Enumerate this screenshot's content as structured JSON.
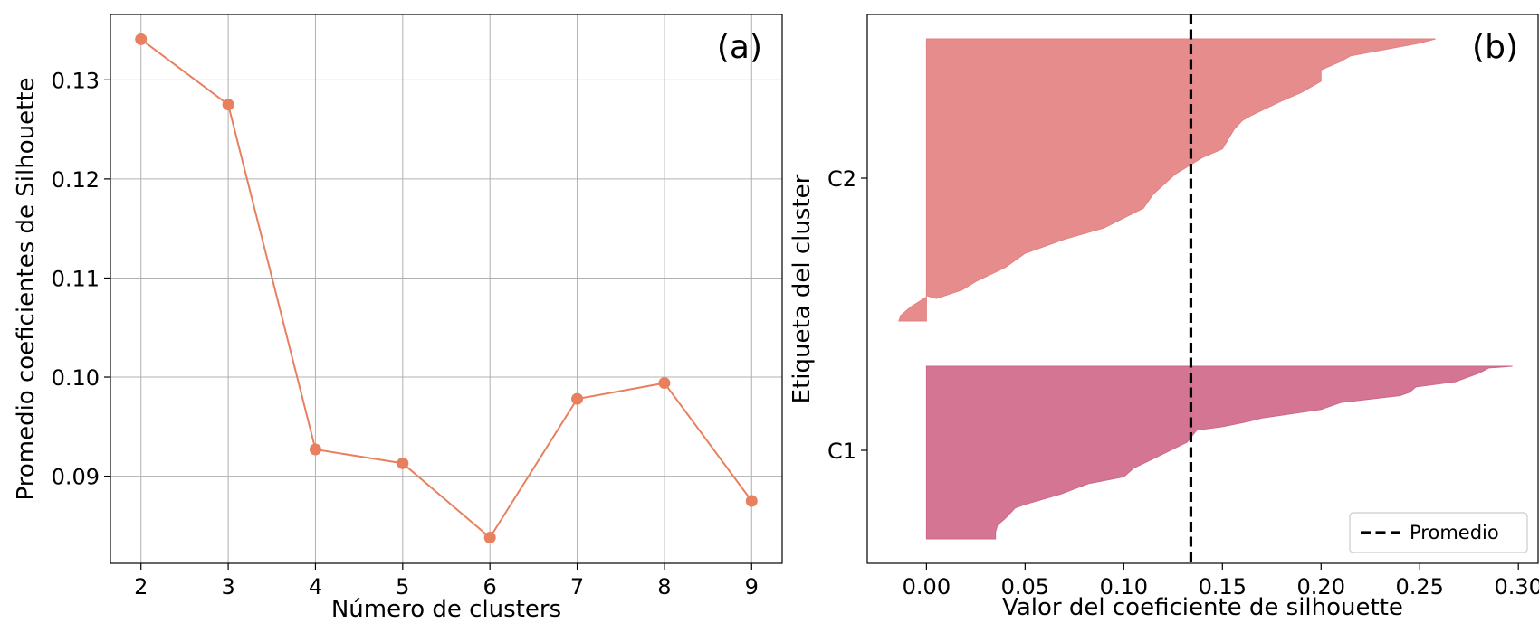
{
  "chart_data": [
    {
      "type": "line",
      "panel_label": "(a)",
      "xlabel": "Número de clusters",
      "ylabel": "Promedio coeficientes de Silhouette",
      "x": [
        2,
        3,
        4,
        5,
        6,
        7,
        8,
        9
      ],
      "series": [
        {
          "values": [
            0.1341,
            0.1275,
            0.0927,
            0.0913,
            0.0838,
            0.0978,
            0.0994,
            0.0875
          ],
          "color": "#e8805f",
          "marker": "circle"
        }
      ],
      "xticks": [
        "2",
        "3",
        "4",
        "5",
        "6",
        "7",
        "8",
        "9"
      ],
      "yticks": [
        "0.09",
        "0.10",
        "0.11",
        "0.12",
        "0.13"
      ],
      "xlim": [
        1.65,
        9.35
      ],
      "ylim": [
        0.0812,
        0.1366
      ],
      "grid": true
    },
    {
      "type": "area",
      "panel_label": "(b)",
      "xlabel": "Valor del coeficiente de silhouette",
      "ylabel": "Etiqueta del cluster",
      "xticks": [
        "0.00",
        "0.05",
        "0.10",
        "0.15",
        "0.20",
        "0.25",
        "0.30"
      ],
      "yticks": [
        "C1",
        "C2"
      ],
      "xlim": [
        -0.03,
        0.31
      ],
      "grid": false,
      "average_line": {
        "value": 0.134,
        "label": "Promedio",
        "color": "#000000",
        "style": "dashed"
      },
      "legend": {
        "position": "bottom-right",
        "entries": [
          "Promedio"
        ]
      },
      "clusters": [
        {
          "name": "C1",
          "color": "#cf6687",
          "silhouette_profile": [
            [
              0.297,
              0.0
            ],
            [
              0.285,
              0.01
            ],
            [
              0.28,
              0.04
            ],
            [
              0.268,
              0.09
            ],
            [
              0.248,
              0.12
            ],
            [
              0.245,
              0.15
            ],
            [
              0.24,
              0.17
            ],
            [
              0.21,
              0.21
            ],
            [
              0.2,
              0.25
            ],
            [
              0.17,
              0.3
            ],
            [
              0.163,
              0.32
            ],
            [
              0.15,
              0.35
            ],
            [
              0.137,
              0.37
            ],
            [
              0.132,
              0.44
            ],
            [
              0.116,
              0.53
            ],
            [
              0.105,
              0.59
            ],
            [
              0.1,
              0.64
            ],
            [
              0.082,
              0.68
            ],
            [
              0.068,
              0.74
            ],
            [
              0.05,
              0.8
            ],
            [
              0.045,
              0.82
            ],
            [
              0.04,
              0.88
            ],
            [
              0.036,
              0.92
            ],
            [
              0.035,
              0.96
            ],
            [
              0.035,
              1.0
            ]
          ]
        },
        {
          "name": "C2",
          "color": "#e38080",
          "silhouette_profile": [
            [
              0.258,
              0.0
            ],
            [
              0.25,
              0.015
            ],
            [
              0.215,
              0.06
            ],
            [
              0.21,
              0.08
            ],
            [
              0.2,
              0.11
            ],
            [
              0.2,
              0.15
            ],
            [
              0.19,
              0.19
            ],
            [
              0.18,
              0.22
            ],
            [
              0.165,
              0.27
            ],
            [
              0.16,
              0.29
            ],
            [
              0.156,
              0.32
            ],
            [
              0.15,
              0.39
            ],
            [
              0.14,
              0.42
            ],
            [
              0.126,
              0.48
            ],
            [
              0.115,
              0.55
            ],
            [
              0.11,
              0.6
            ],
            [
              0.09,
              0.67
            ],
            [
              0.07,
              0.71
            ],
            [
              0.05,
              0.76
            ],
            [
              0.04,
              0.81
            ],
            [
              0.025,
              0.86
            ],
            [
              0.018,
              0.89
            ],
            [
              0.005,
              0.92
            ],
            [
              0.0,
              0.91
            ],
            [
              0.0,
              0.915
            ],
            [
              -0.008,
              0.95
            ],
            [
              -0.013,
              0.98
            ],
            [
              -0.014,
              1.0
            ]
          ]
        }
      ]
    }
  ]
}
